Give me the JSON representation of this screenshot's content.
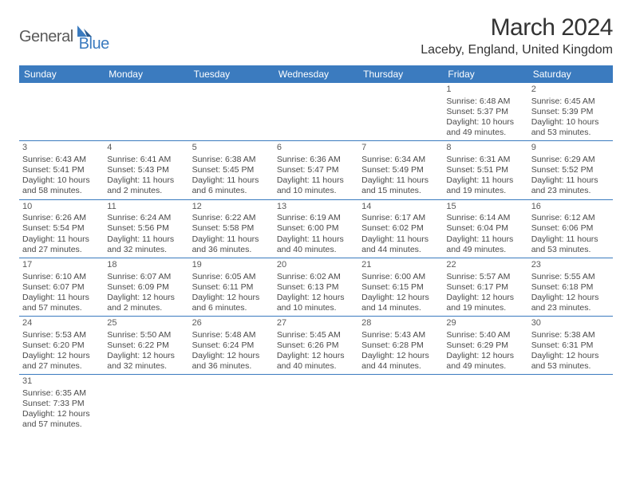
{
  "logo": {
    "part1": "General",
    "part2": "Blue"
  },
  "title": "March 2024",
  "location": "Laceby, England, United Kingdom",
  "colors": {
    "header_bg": "#3b7bbf",
    "text": "#4a4a4a",
    "border": "#3b7bbf"
  },
  "day_headers": [
    "Sunday",
    "Monday",
    "Tuesday",
    "Wednesday",
    "Thursday",
    "Friday",
    "Saturday"
  ],
  "weeks": [
    [
      null,
      null,
      null,
      null,
      null,
      {
        "n": "1",
        "sr": "Sunrise: 6:48 AM",
        "ss": "Sunset: 5:37 PM",
        "dl1": "Daylight: 10 hours",
        "dl2": "and 49 minutes."
      },
      {
        "n": "2",
        "sr": "Sunrise: 6:45 AM",
        "ss": "Sunset: 5:39 PM",
        "dl1": "Daylight: 10 hours",
        "dl2": "and 53 minutes."
      }
    ],
    [
      {
        "n": "3",
        "sr": "Sunrise: 6:43 AM",
        "ss": "Sunset: 5:41 PM",
        "dl1": "Daylight: 10 hours",
        "dl2": "and 58 minutes."
      },
      {
        "n": "4",
        "sr": "Sunrise: 6:41 AM",
        "ss": "Sunset: 5:43 PM",
        "dl1": "Daylight: 11 hours",
        "dl2": "and 2 minutes."
      },
      {
        "n": "5",
        "sr": "Sunrise: 6:38 AM",
        "ss": "Sunset: 5:45 PM",
        "dl1": "Daylight: 11 hours",
        "dl2": "and 6 minutes."
      },
      {
        "n": "6",
        "sr": "Sunrise: 6:36 AM",
        "ss": "Sunset: 5:47 PM",
        "dl1": "Daylight: 11 hours",
        "dl2": "and 10 minutes."
      },
      {
        "n": "7",
        "sr": "Sunrise: 6:34 AM",
        "ss": "Sunset: 5:49 PM",
        "dl1": "Daylight: 11 hours",
        "dl2": "and 15 minutes."
      },
      {
        "n": "8",
        "sr": "Sunrise: 6:31 AM",
        "ss": "Sunset: 5:51 PM",
        "dl1": "Daylight: 11 hours",
        "dl2": "and 19 minutes."
      },
      {
        "n": "9",
        "sr": "Sunrise: 6:29 AM",
        "ss": "Sunset: 5:52 PM",
        "dl1": "Daylight: 11 hours",
        "dl2": "and 23 minutes."
      }
    ],
    [
      {
        "n": "10",
        "sr": "Sunrise: 6:26 AM",
        "ss": "Sunset: 5:54 PM",
        "dl1": "Daylight: 11 hours",
        "dl2": "and 27 minutes."
      },
      {
        "n": "11",
        "sr": "Sunrise: 6:24 AM",
        "ss": "Sunset: 5:56 PM",
        "dl1": "Daylight: 11 hours",
        "dl2": "and 32 minutes."
      },
      {
        "n": "12",
        "sr": "Sunrise: 6:22 AM",
        "ss": "Sunset: 5:58 PM",
        "dl1": "Daylight: 11 hours",
        "dl2": "and 36 minutes."
      },
      {
        "n": "13",
        "sr": "Sunrise: 6:19 AM",
        "ss": "Sunset: 6:00 PM",
        "dl1": "Daylight: 11 hours",
        "dl2": "and 40 minutes."
      },
      {
        "n": "14",
        "sr": "Sunrise: 6:17 AM",
        "ss": "Sunset: 6:02 PM",
        "dl1": "Daylight: 11 hours",
        "dl2": "and 44 minutes."
      },
      {
        "n": "15",
        "sr": "Sunrise: 6:14 AM",
        "ss": "Sunset: 6:04 PM",
        "dl1": "Daylight: 11 hours",
        "dl2": "and 49 minutes."
      },
      {
        "n": "16",
        "sr": "Sunrise: 6:12 AM",
        "ss": "Sunset: 6:06 PM",
        "dl1": "Daylight: 11 hours",
        "dl2": "and 53 minutes."
      }
    ],
    [
      {
        "n": "17",
        "sr": "Sunrise: 6:10 AM",
        "ss": "Sunset: 6:07 PM",
        "dl1": "Daylight: 11 hours",
        "dl2": "and 57 minutes."
      },
      {
        "n": "18",
        "sr": "Sunrise: 6:07 AM",
        "ss": "Sunset: 6:09 PM",
        "dl1": "Daylight: 12 hours",
        "dl2": "and 2 minutes."
      },
      {
        "n": "19",
        "sr": "Sunrise: 6:05 AM",
        "ss": "Sunset: 6:11 PM",
        "dl1": "Daylight: 12 hours",
        "dl2": "and 6 minutes."
      },
      {
        "n": "20",
        "sr": "Sunrise: 6:02 AM",
        "ss": "Sunset: 6:13 PM",
        "dl1": "Daylight: 12 hours",
        "dl2": "and 10 minutes."
      },
      {
        "n": "21",
        "sr": "Sunrise: 6:00 AM",
        "ss": "Sunset: 6:15 PM",
        "dl1": "Daylight: 12 hours",
        "dl2": "and 14 minutes."
      },
      {
        "n": "22",
        "sr": "Sunrise: 5:57 AM",
        "ss": "Sunset: 6:17 PM",
        "dl1": "Daylight: 12 hours",
        "dl2": "and 19 minutes."
      },
      {
        "n": "23",
        "sr": "Sunrise: 5:55 AM",
        "ss": "Sunset: 6:18 PM",
        "dl1": "Daylight: 12 hours",
        "dl2": "and 23 minutes."
      }
    ],
    [
      {
        "n": "24",
        "sr": "Sunrise: 5:53 AM",
        "ss": "Sunset: 6:20 PM",
        "dl1": "Daylight: 12 hours",
        "dl2": "and 27 minutes."
      },
      {
        "n": "25",
        "sr": "Sunrise: 5:50 AM",
        "ss": "Sunset: 6:22 PM",
        "dl1": "Daylight: 12 hours",
        "dl2": "and 32 minutes."
      },
      {
        "n": "26",
        "sr": "Sunrise: 5:48 AM",
        "ss": "Sunset: 6:24 PM",
        "dl1": "Daylight: 12 hours",
        "dl2": "and 36 minutes."
      },
      {
        "n": "27",
        "sr": "Sunrise: 5:45 AM",
        "ss": "Sunset: 6:26 PM",
        "dl1": "Daylight: 12 hours",
        "dl2": "and 40 minutes."
      },
      {
        "n": "28",
        "sr": "Sunrise: 5:43 AM",
        "ss": "Sunset: 6:28 PM",
        "dl1": "Daylight: 12 hours",
        "dl2": "and 44 minutes."
      },
      {
        "n": "29",
        "sr": "Sunrise: 5:40 AM",
        "ss": "Sunset: 6:29 PM",
        "dl1": "Daylight: 12 hours",
        "dl2": "and 49 minutes."
      },
      {
        "n": "30",
        "sr": "Sunrise: 5:38 AM",
        "ss": "Sunset: 6:31 PM",
        "dl1": "Daylight: 12 hours",
        "dl2": "and 53 minutes."
      }
    ],
    [
      {
        "n": "31",
        "sr": "Sunrise: 6:35 AM",
        "ss": "Sunset: 7:33 PM",
        "dl1": "Daylight: 12 hours",
        "dl2": "and 57 minutes."
      },
      null,
      null,
      null,
      null,
      null,
      null
    ]
  ]
}
